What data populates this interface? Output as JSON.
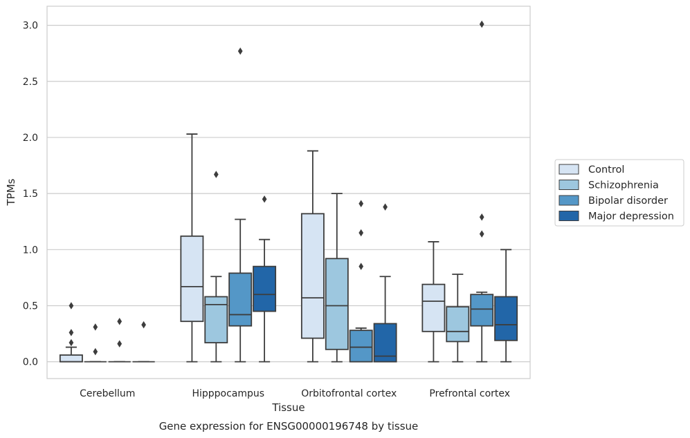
{
  "chart_data": {
    "type": "box",
    "xlabel": "Tissue",
    "ylabel": "TPMs",
    "caption": "Gene expression for ENSG00000196748 by tissue",
    "ylim": [
      -0.15,
      3.17
    ],
    "yticks": [
      0.0,
      0.5,
      1.0,
      1.5,
      2.0,
      2.5,
      3.0
    ],
    "ytick_labels": [
      "0.0",
      "0.5",
      "1.0",
      "1.5",
      "2.0",
      "2.5",
      "3.0"
    ],
    "grid": "horizontal",
    "legend_position": "right",
    "categories": [
      "Cerebellum",
      "Hipppocampus",
      "Orbitofrontal cortex",
      "Prefrontal cortex"
    ],
    "series": [
      {
        "name": "Control",
        "color": "#d6e4f3",
        "boxes": [
          {
            "min": 0.0,
            "q1": 0.0,
            "median": 0.0,
            "q3": 0.06,
            "max": 0.13,
            "outliers": [
              0.17,
              0.26,
              0.5
            ]
          },
          {
            "min": 0.0,
            "q1": 0.36,
            "median": 0.67,
            "q3": 1.12,
            "max": 2.03,
            "outliers": []
          },
          {
            "min": 0.0,
            "q1": 0.21,
            "median": 0.57,
            "q3": 1.32,
            "max": 1.88,
            "outliers": []
          },
          {
            "min": 0.0,
            "q1": 0.27,
            "median": 0.54,
            "q3": 0.69,
            "max": 1.07,
            "outliers": []
          }
        ]
      },
      {
        "name": "Schizophrenia",
        "color": "#9dc7df",
        "boxes": [
          {
            "min": 0.0,
            "q1": 0.0,
            "median": 0.0,
            "q3": 0.0,
            "max": 0.0,
            "outliers": [
              0.09,
              0.31
            ]
          },
          {
            "min": 0.0,
            "q1": 0.17,
            "median": 0.51,
            "q3": 0.58,
            "max": 0.76,
            "outliers": [
              1.67
            ]
          },
          {
            "min": 0.0,
            "q1": 0.11,
            "median": 0.5,
            "q3": 0.92,
            "max": 1.5,
            "outliers": []
          },
          {
            "min": 0.0,
            "q1": 0.18,
            "median": 0.27,
            "q3": 0.49,
            "max": 0.78,
            "outliers": []
          }
        ]
      },
      {
        "name": "Bipolar disorder",
        "color": "#5497c7",
        "boxes": [
          {
            "min": 0.0,
            "q1": 0.0,
            "median": 0.0,
            "q3": 0.0,
            "max": 0.0,
            "outliers": [
              0.16,
              0.36
            ]
          },
          {
            "min": 0.0,
            "q1": 0.32,
            "median": 0.42,
            "q3": 0.79,
            "max": 1.27,
            "outliers": [
              2.77
            ]
          },
          {
            "min": 0.0,
            "q1": 0.0,
            "median": 0.13,
            "q3": 0.28,
            "max": 0.3,
            "outliers": [
              0.85,
              1.15,
              1.41
            ]
          },
          {
            "min": 0.0,
            "q1": 0.32,
            "median": 0.47,
            "q3": 0.6,
            "max": 0.62,
            "outliers": [
              1.14,
              1.29,
              3.01
            ]
          }
        ]
      },
      {
        "name": "Major depression",
        "color": "#2266a8",
        "boxes": [
          {
            "min": 0.0,
            "q1": 0.0,
            "median": 0.0,
            "q3": 0.0,
            "max": 0.0,
            "outliers": [
              0.33
            ]
          },
          {
            "min": 0.0,
            "q1": 0.45,
            "median": 0.6,
            "q3": 0.85,
            "max": 1.09,
            "outliers": [
              1.45
            ]
          },
          {
            "min": 0.0,
            "q1": 0.0,
            "median": 0.05,
            "q3": 0.34,
            "max": 0.76,
            "outliers": [
              1.38
            ]
          },
          {
            "min": 0.0,
            "q1": 0.19,
            "median": 0.33,
            "q3": 0.58,
            "max": 1.0,
            "outliers": []
          }
        ]
      }
    ]
  }
}
